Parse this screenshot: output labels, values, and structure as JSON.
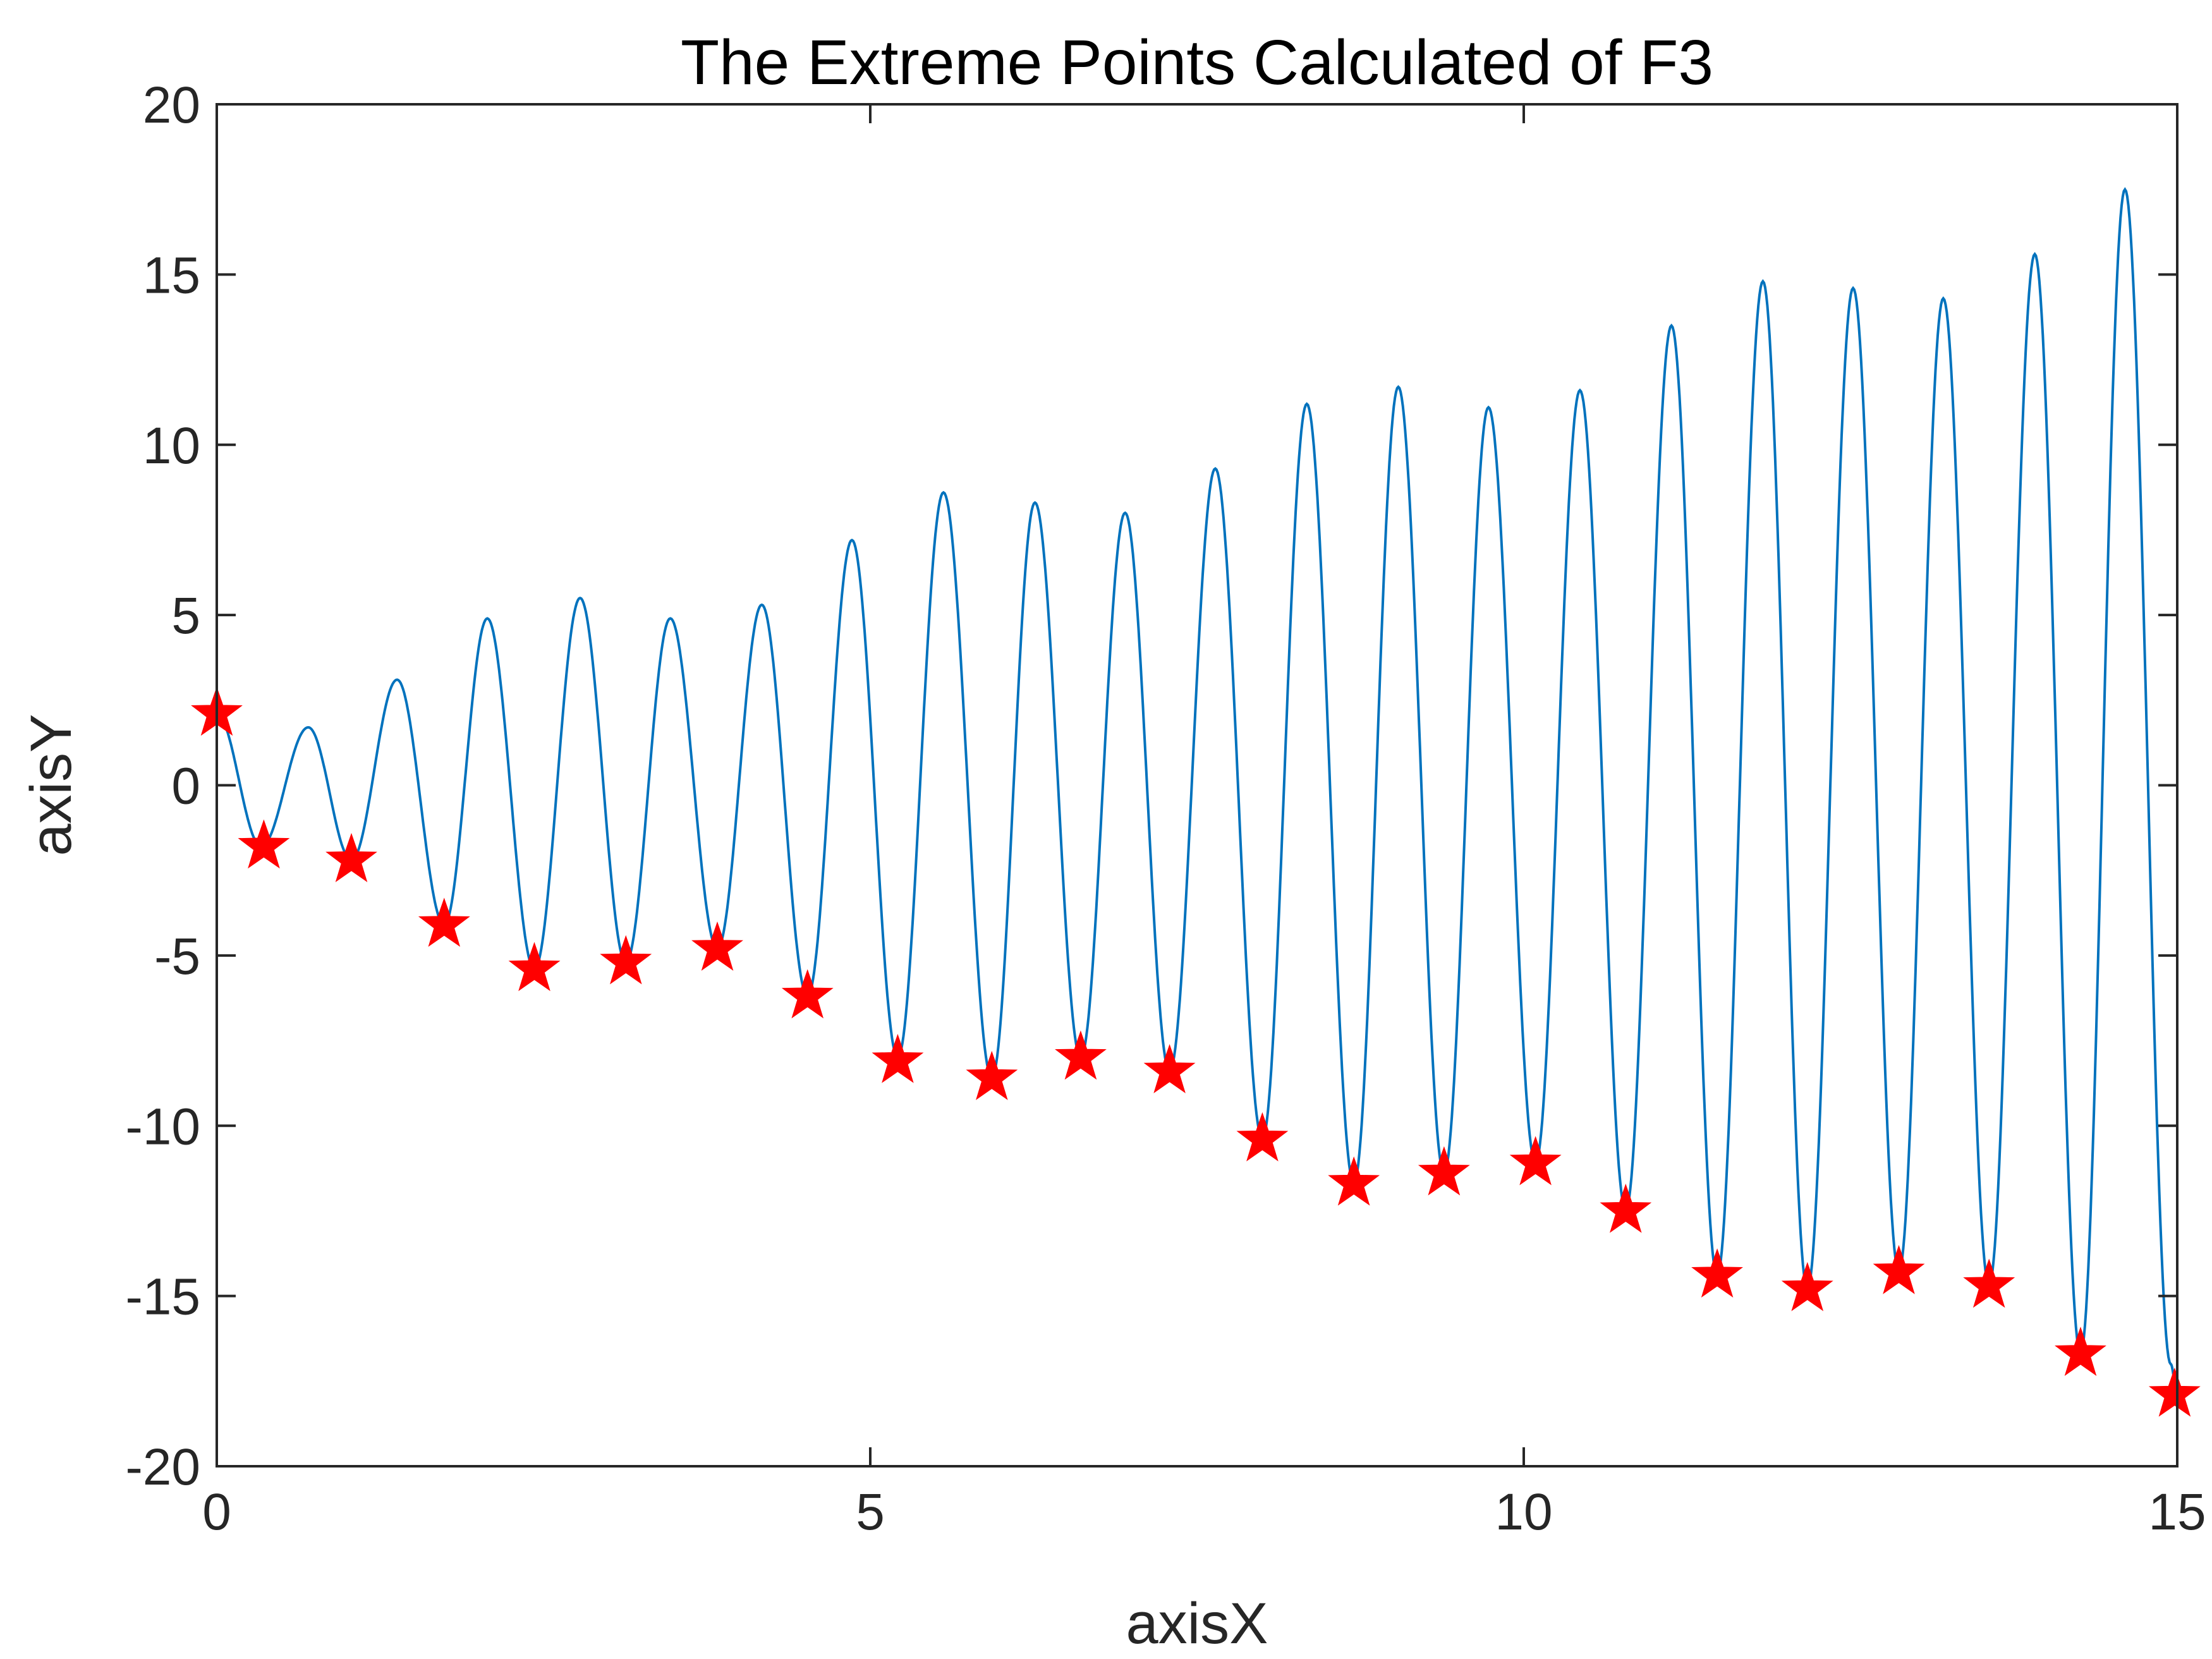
{
  "chart_data": {
    "type": "line",
    "title": "The Extreme Points Calculated of F3",
    "xlabel": "axisX",
    "ylabel": "axisY",
    "xlim": [
      0,
      15
    ],
    "ylim": [
      -20,
      20
    ],
    "x_ticks": [
      0,
      5,
      10,
      15
    ],
    "y_ticks": [
      20,
      15,
      10,
      5,
      0,
      -5,
      -10,
      -15,
      -20
    ],
    "x_tick_labels": [
      "0",
      "5",
      "10",
      "15"
    ],
    "y_tick_labels": [
      "20",
      "15",
      "10",
      "5",
      "0",
      "-5",
      "-10",
      "-15",
      "-20"
    ],
    "grid": false,
    "box": true,
    "line_color": "#0072BD",
    "marker_color": "#FF0000",
    "series": [
      {
        "style": "line",
        "x": [
          0,
          0.34,
          0.7,
          1.03,
          1.38,
          1.74,
          2.07,
          2.43,
          2.78,
          3.13,
          3.47,
          3.83,
          4.17,
          4.52,
          4.86,
          5.21,
          5.56,
          5.93,
          6.26,
          6.61,
          6.95,
          7.29,
          7.64,
          8.0,
          8.34,
          8.7,
          9.04,
          9.39,
          9.73,
          10.09,
          10.43,
          10.78,
          11.13,
          11.48,
          11.83,
          12.17,
          12.52,
          12.87,
          13.21,
          13.56,
          13.91,
          14.26,
          14.6,
          14.95,
          15.0
        ],
        "y": [
          2.1,
          -1.8,
          1.7,
          -2.2,
          3.1,
          -4.1,
          4.9,
          -5.4,
          5.5,
          -5.2,
          4.9,
          -4.8,
          5.3,
          -6.2,
          7.2,
          -8.0,
          8.6,
          -8.6,
          8.3,
          -8.0,
          8.0,
          -8.4,
          9.3,
          -10.4,
          11.2,
          -11.7,
          11.7,
          -11.4,
          11.1,
          -11.1,
          11.6,
          -12.5,
          13.5,
          -14.4,
          14.8,
          -14.8,
          14.6,
          -14.3,
          14.3,
          -14.7,
          15.6,
          -16.7,
          17.5,
          -17.0,
          -17.9
        ]
      },
      {
        "style": "marker",
        "marker": "pentagram",
        "x": [
          0,
          0.36,
          1.03,
          1.74,
          2.43,
          3.13,
          3.83,
          4.52,
          5.21,
          5.93,
          6.61,
          7.29,
          8.0,
          8.7,
          9.39,
          10.09,
          10.78,
          11.48,
          12.17,
          12.87,
          13.56,
          14.26,
          14.98
        ],
        "y": [
          2.1,
          -1.8,
          -2.2,
          -4.1,
          -5.4,
          -5.2,
          -4.8,
          -6.2,
          -8.1,
          -8.6,
          -8.0,
          -8.4,
          -10.4,
          -11.7,
          -11.4,
          -11.1,
          -12.5,
          -14.4,
          -14.8,
          -14.3,
          -14.7,
          -16.7,
          -17.9
        ]
      }
    ]
  }
}
